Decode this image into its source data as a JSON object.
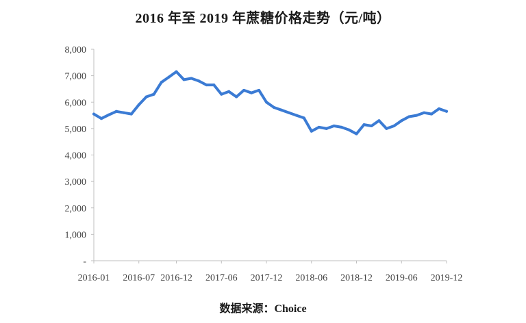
{
  "chart_data": {
    "type": "line",
    "title": "2016 年至 2019 年蔗糖价格走势（元/吨）",
    "xlabel": "",
    "ylabel": "",
    "ylim": [
      0,
      8000
    ],
    "yticks": [
      0,
      1000,
      2000,
      3000,
      4000,
      5000,
      6000,
      7000,
      8000
    ],
    "ytick_labels": [
      "-",
      "1,000",
      "2,000",
      "3,000",
      "4,000",
      "5,000",
      "6,000",
      "7,000",
      "8,000"
    ],
    "xlim": [
      "2016-01",
      "2019-12"
    ],
    "xticks": [
      "2016-01",
      "2016-07",
      "2016-12",
      "2017-06",
      "2017-12",
      "2018-06",
      "2018-12",
      "2019-06",
      "2019-12"
    ],
    "line_color": "#3b7bd4",
    "grid": false,
    "series": [
      {
        "x": [
          "2016-01",
          "2016-02",
          "2016-03",
          "2016-04",
          "2016-05",
          "2016-06",
          "2016-07",
          "2016-08",
          "2016-09",
          "2016-10",
          "2016-11",
          "2016-12",
          "2017-01",
          "2017-02",
          "2017-03",
          "2017-04",
          "2017-05",
          "2017-06",
          "2017-07",
          "2017-08",
          "2017-09",
          "2017-10",
          "2017-11",
          "2017-12",
          "2018-01",
          "2018-02",
          "2018-03",
          "2018-04",
          "2018-05",
          "2018-06",
          "2018-07",
          "2018-08",
          "2018-09",
          "2018-10",
          "2018-11",
          "2018-12",
          "2019-01",
          "2019-02",
          "2019-03",
          "2019-04",
          "2019-05",
          "2019-06",
          "2019-07",
          "2019-08",
          "2019-09",
          "2019-10",
          "2019-11",
          "2019-12"
        ],
        "values": [
          5550,
          5380,
          5520,
          5650,
          5600,
          5550,
          5900,
          6200,
          6300,
          6750,
          6950,
          7150,
          6850,
          6900,
          6800,
          6650,
          6650,
          6300,
          6400,
          6200,
          6450,
          6350,
          6450,
          6000,
          5800,
          5700,
          5600,
          5500,
          5400,
          4900,
          5050,
          5000,
          5100,
          5050,
          4950,
          4800,
          5150,
          5100,
          5300,
          5000,
          5100,
          5300,
          5450,
          5500,
          5600,
          5550,
          5750,
          5650
        ]
      }
    ]
  },
  "source": "数据来源：Choice"
}
